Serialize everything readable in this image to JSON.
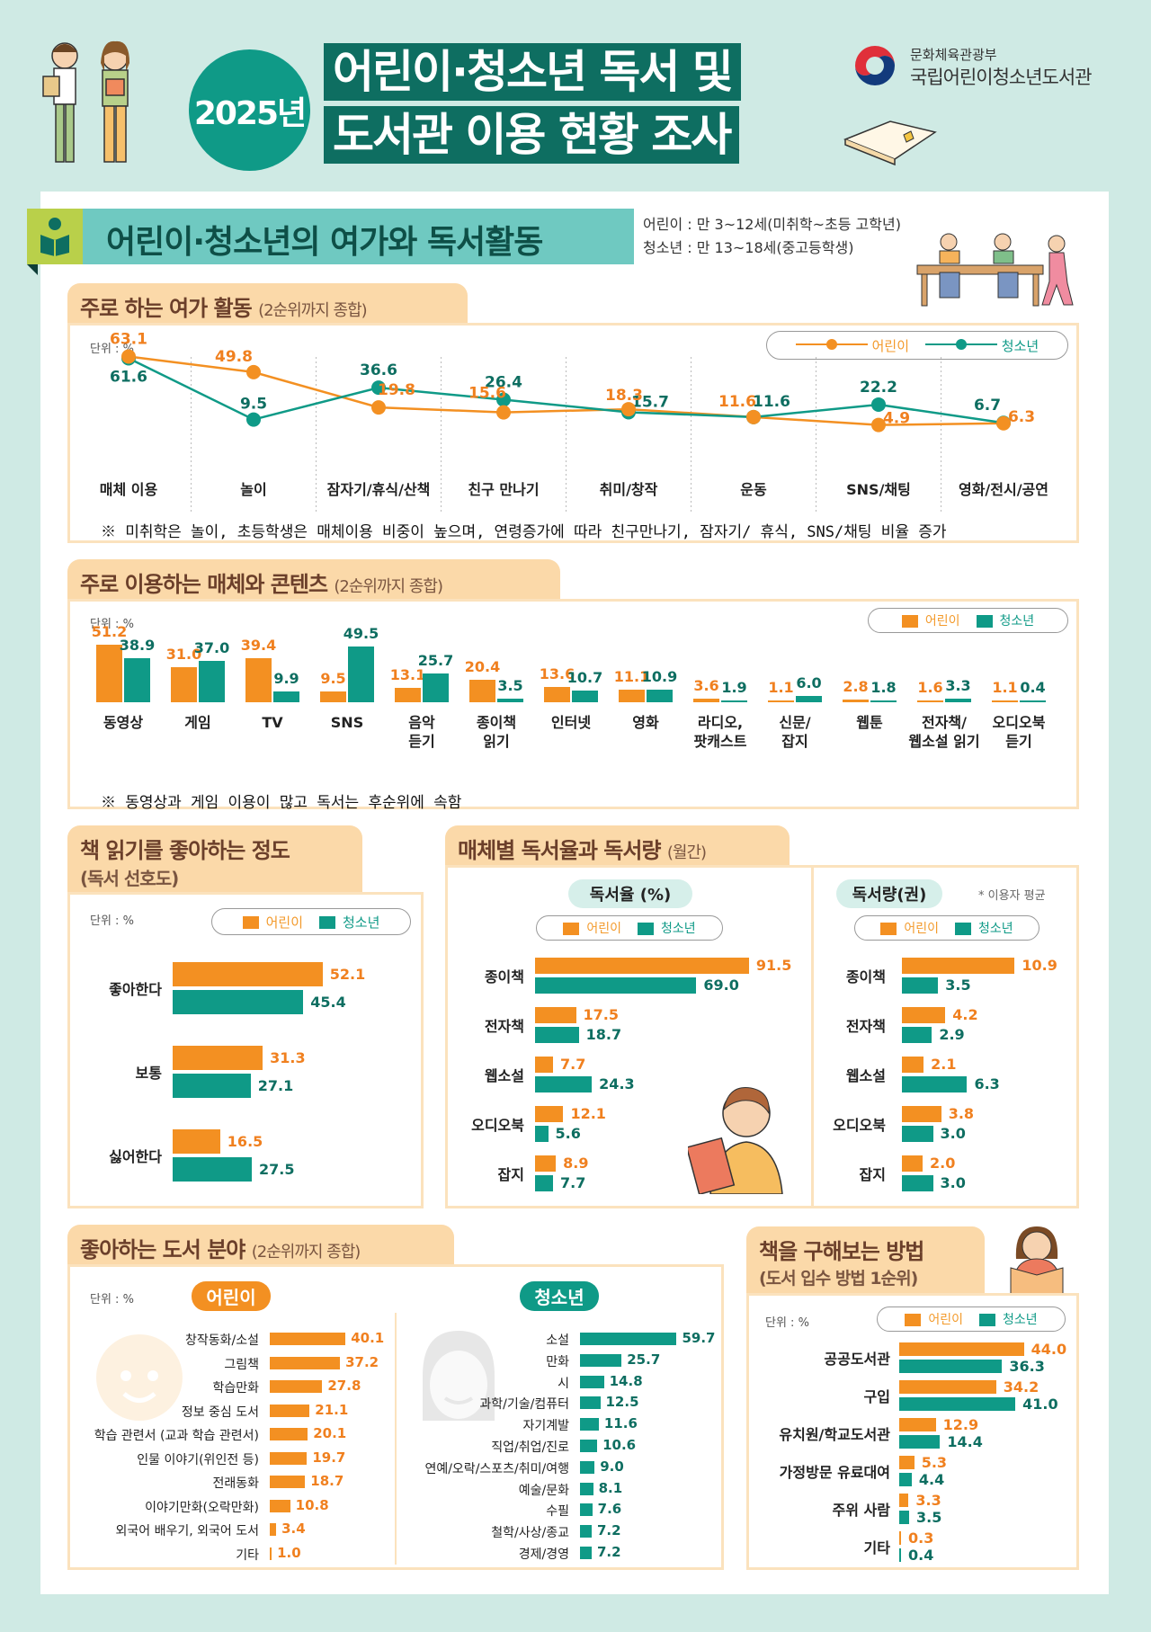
{
  "header": {
    "year_badge": "2025년",
    "title_line1": "어린이·청소년 독서 및",
    "title_line2": "도서관 이용 현황 조사",
    "org_ministry": "문화체육관광부",
    "org_library": "국립어린이청소년도서관"
  },
  "section": {
    "title": "어린이·청소년의 여가와 독서활동",
    "age_child": "어린이 : 만 3~12세(미취학~초등 고학년)",
    "age_teen": "청소년 : 만 13~18세(중고등학생)"
  },
  "legend": {
    "child": "어린이",
    "teen": "청소년"
  },
  "colors": {
    "child": "#f39022",
    "teen": "#0f9a87",
    "title_bg": "#0e6e61",
    "tab_bg": "#fbd9a9"
  },
  "unit": "단위 : %",
  "chart_data": [
    {
      "id": "leisure",
      "type": "line",
      "title": "주로 하는 여가 활동",
      "subtitle": "(2순위까지 종합)",
      "unit": "%",
      "categories": [
        "매체 이용",
        "놀이",
        "잠자기/휴식/산책",
        "친구 만나기",
        "취미/창작",
        "운동",
        "SNS/채팅",
        "영화/전시/공연"
      ],
      "series": [
        {
          "name": "어린이",
          "values": [
            63.1,
            49.8,
            19.8,
            15.6,
            18.3,
            11.6,
            4.9,
            6.3
          ]
        },
        {
          "name": "청소년",
          "values": [
            61.6,
            9.5,
            36.6,
            26.4,
            15.7,
            11.6,
            22.2,
            6.7
          ]
        }
      ],
      "legend_position": "top-right",
      "note": "※ 미취학은 놀이, 초등학생은 매체이용 비중이 높으며, 연령증가에 따라 친구만나기, 잠자기/ 휴식, SNS/채팅 비율 증가"
    },
    {
      "id": "media",
      "type": "bar",
      "title": "주로 이용하는 매체와 콘텐츠",
      "subtitle": "(2순위까지 종합)",
      "unit": "%",
      "categories": [
        "동영상",
        "게임",
        "TV",
        "SNS",
        "음악\n듣기",
        "종이책\n읽기",
        "인터넷",
        "영화",
        "라디오,\n팟캐스트",
        "신문/\n잡지",
        "웹툰",
        "전자책/\n웹소설 읽기",
        "오디오북\n듣기"
      ],
      "series": [
        {
          "name": "어린이",
          "values": [
            51.2,
            31.0,
            39.4,
            9.5,
            13.1,
            20.4,
            13.6,
            11.1,
            3.6,
            1.1,
            2.8,
            1.6,
            1.1
          ]
        },
        {
          "name": "청소년",
          "values": [
            38.9,
            37.0,
            9.9,
            49.5,
            25.7,
            3.5,
            10.7,
            10.9,
            1.9,
            6.0,
            1.8,
            3.3,
            0.4
          ]
        }
      ],
      "legend_position": "top-right",
      "note": "※ 동영상과 게임 이용이 많고 독서는 후순위에 속함"
    },
    {
      "id": "preference",
      "type": "bar",
      "orientation": "horizontal",
      "title": "책 읽기를 좋아하는 정도",
      "subtitle": "(독서 선호도)",
      "unit": "%",
      "categories": [
        "좋아한다",
        "보통",
        "싫어한다"
      ],
      "series": [
        {
          "name": "어린이",
          "values": [
            52.1,
            31.3,
            16.5
          ]
        },
        {
          "name": "청소년",
          "values": [
            45.4,
            27.1,
            27.5
          ]
        }
      ]
    },
    {
      "id": "reading_rate",
      "type": "bar",
      "orientation": "horizontal",
      "title": "매체별 독서율과 독서량",
      "subtitle": "(월간)",
      "panel_title": "독서율 (%)",
      "categories": [
        "종이책",
        "전자책",
        "웹소설",
        "오디오북",
        "잡지"
      ],
      "series": [
        {
          "name": "어린이",
          "values": [
            91.5,
            17.5,
            7.7,
            12.1,
            8.9
          ]
        },
        {
          "name": "청소년",
          "values": [
            69.0,
            18.7,
            24.3,
            5.6,
            7.7
          ]
        }
      ]
    },
    {
      "id": "reading_amount",
      "type": "bar",
      "orientation": "horizontal",
      "panel_title": "독서량(권)",
      "footnote": "* 이용자 평균",
      "categories": [
        "종이책",
        "전자책",
        "웹소설",
        "오디오북",
        "잡지"
      ],
      "series": [
        {
          "name": "어린이",
          "values": [
            10.9,
            4.2,
            2.1,
            3.8,
            2.0
          ]
        },
        {
          "name": "청소년",
          "values": [
            3.5,
            2.9,
            6.3,
            3.0,
            3.0
          ]
        }
      ]
    },
    {
      "id": "genre_child",
      "type": "bar",
      "orientation": "horizontal",
      "title": "좋아하는 도서 분야",
      "subtitle": "(2순위까지 종합)",
      "group": "어린이",
      "unit": "%",
      "categories": [
        "창작동화/소설",
        "그림책",
        "학습만화",
        "정보 중심 도서",
        "학습 관련서 (교과 학습 관련서)",
        "인물 이야기(위인전 등)",
        "전래동화",
        "이야기만화(오락만화)",
        "외국어 배우기, 외국어 도서",
        "기타"
      ],
      "values": [
        40.1,
        37.2,
        27.8,
        21.1,
        20.1,
        19.7,
        18.7,
        10.8,
        3.4,
        1.0
      ]
    },
    {
      "id": "genre_teen",
      "type": "bar",
      "orientation": "horizontal",
      "group": "청소년",
      "unit": "%",
      "categories": [
        "소설",
        "만화",
        "시",
        "과학/기술/컴퓨터",
        "자기계발",
        "직업/취업/진로",
        "연예/오락/스포츠/취미/여행",
        "예술/문화",
        "수필",
        "철학/사상/종교",
        "경제/경영"
      ],
      "values": [
        59.7,
        25.7,
        14.8,
        12.5,
        11.6,
        10.6,
        9.0,
        8.1,
        7.6,
        7.2,
        7.2
      ]
    },
    {
      "id": "acquisition",
      "type": "bar",
      "orientation": "horizontal",
      "title": "책을 구해보는 방법",
      "subtitle": "(도서 입수 방법 1순위)",
      "unit": "%",
      "categories": [
        "공공도서관",
        "구입",
        "유치원/학교도서관",
        "가정방문 유료대여",
        "주위 사람",
        "기타"
      ],
      "series": [
        {
          "name": "어린이",
          "values": [
            44.0,
            34.2,
            12.9,
            5.3,
            3.3,
            0.3
          ]
        },
        {
          "name": "청소년",
          "values": [
            36.3,
            41.0,
            14.4,
            4.4,
            3.5,
            0.4
          ]
        }
      ]
    }
  ]
}
